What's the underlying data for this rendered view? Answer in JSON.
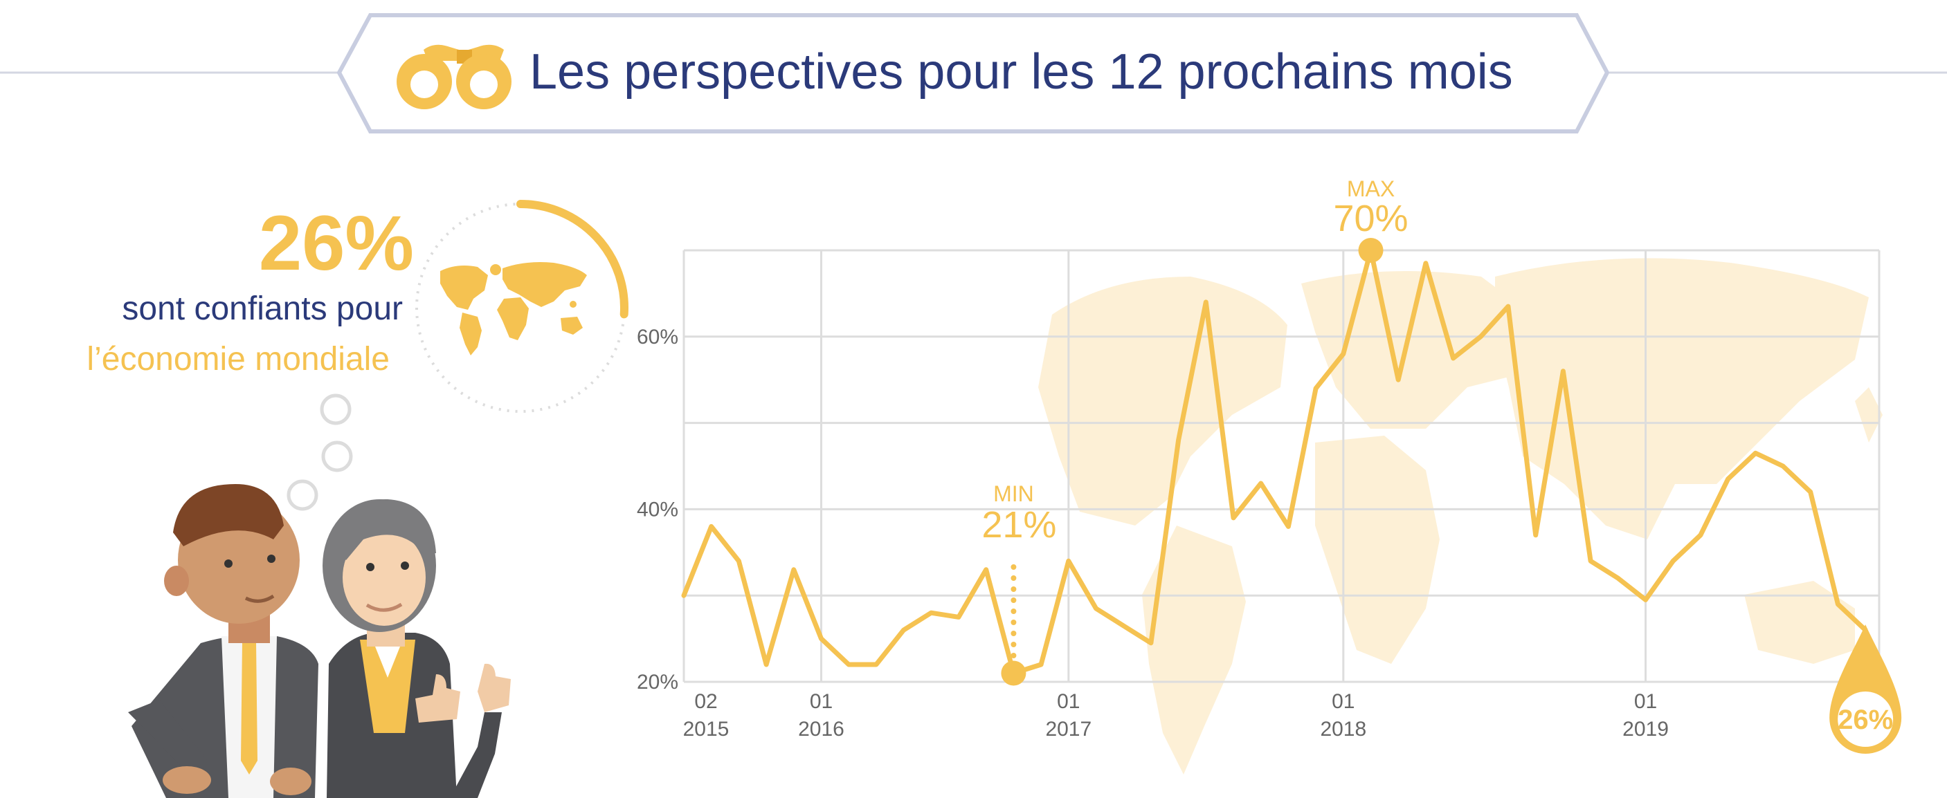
{
  "header": {
    "title": "Les perspectives pour les 12 prochains mois",
    "icon": "binoculars-icon"
  },
  "stat": {
    "value": "26%",
    "line1": "sont confiants pour",
    "line2": "l’économie mondiale",
    "ring_fraction": 0.26
  },
  "colors": {
    "accent": "#f5c251",
    "navy": "#2b3a7a",
    "map": "#fdf0d6",
    "grid": "#dddddd",
    "frame": "#c8cde0"
  },
  "chart_data": {
    "type": "line",
    "title": "",
    "xlabel": "",
    "ylabel": "",
    "ylim": [
      20,
      70
    ],
    "y_ticks": [
      {
        "label": "20%",
        "value": 20
      },
      {
        "label": "40%",
        "value": 40
      },
      {
        "label": "60%",
        "value": 60
      }
    ],
    "x_ticks": [
      {
        "label": [
          "02",
          "2015"
        ],
        "x": 0
      },
      {
        "label": [
          "01",
          "2016"
        ],
        "x": 5
      },
      {
        "label": [
          "01",
          "2017"
        ],
        "x": 14
      },
      {
        "label": [
          "01",
          "2018"
        ],
        "x": 24
      },
      {
        "label": [
          "01",
          "2019"
        ],
        "x": 35
      }
    ],
    "x_range": [
      0,
      43.5
    ],
    "grid": true,
    "series": [
      {
        "values": [
          30,
          38,
          34,
          22,
          33,
          25,
          22,
          22,
          26,
          28,
          27.5,
          33,
          21,
          22,
          34,
          28.5,
          26.5,
          24.5,
          48,
          64,
          39,
          43,
          38,
          54,
          58,
          70,
          55,
          68.5,
          57.5,
          60,
          63.5,
          37,
          56,
          34,
          32,
          29.5,
          34,
          37,
          43.5,
          46.5,
          45,
          42,
          29,
          26
        ]
      }
    ],
    "annotations": [
      {
        "label": "MIN",
        "value": "21%",
        "index": 12
      },
      {
        "label": "MAX",
        "value": "70%",
        "index": 25
      },
      {
        "label": "",
        "value": "26%",
        "index": 43
      }
    ]
  }
}
